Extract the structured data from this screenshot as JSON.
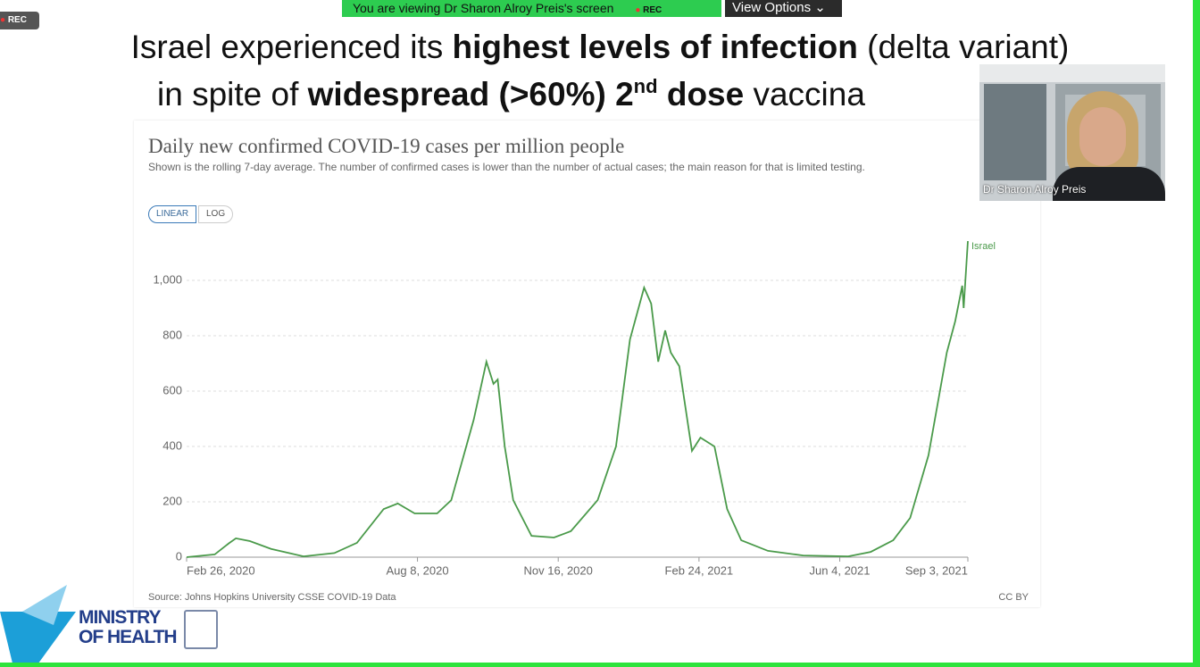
{
  "zoom": {
    "viewing": "You are viewing Dr Sharon Alroy Preis's screen",
    "rec": "REC",
    "view_options": "View Options",
    "rec_badge": "REC"
  },
  "slide": {
    "line1": [
      "Israel experienced its ",
      "highest levels of infection",
      " (delta variant)"
    ],
    "line2": [
      "in spite of ",
      "widespread (>60%) 2",
      "nd",
      " dose",
      " vaccina"
    ]
  },
  "video": {
    "name": "Dr Sharon Alroy Preis"
  },
  "logo": {
    "line1": "MINISTRY",
    "line2": "OF HEALTH"
  },
  "chart_data": {
    "type": "line",
    "title": "Daily new confirmed COVID-19 cases per million people",
    "subtitle": "Shown is the rolling 7-day average. The number of confirmed cases is lower than the number of actual cases; the main reason for that is limited testing.",
    "buttons": [
      "LINEAR",
      "LOG"
    ],
    "source": "Source: Johns Hopkins University CSSE COVID-19 Data",
    "license": "CC BY",
    "x": [
      "2020-02-26",
      "2020-03-17",
      "2020-03-27",
      "2020-04-01",
      "2020-04-11",
      "2020-04-26",
      "2020-05-19",
      "2020-06-10",
      "2020-06-26",
      "2020-07-15",
      "2020-07-25",
      "2020-08-06",
      "2020-08-22",
      "2020-09-01",
      "2020-09-17",
      "2020-09-26",
      "2020-10-01",
      "2020-10-04",
      "2020-10-09",
      "2020-10-15",
      "2020-10-28",
      "2020-11-13",
      "2020-11-25",
      "2020-12-14",
      "2020-12-27",
      "2021-01-06",
      "2021-01-16",
      "2021-01-21",
      "2021-01-26",
      "2021-01-31",
      "2021-02-04",
      "2021-02-10",
      "2021-02-19",
      "2021-02-25",
      "2021-03-07",
      "2021-03-16",
      "2021-03-26",
      "2021-04-14",
      "2021-05-09",
      "2021-06-10",
      "2021-06-26",
      "2021-07-12",
      "2021-07-24",
      "2021-08-06",
      "2021-08-19",
      "2021-08-25",
      "2021-08-30",
      "2021-08-31",
      "2021-09-03"
    ],
    "series": [
      {
        "name": "Israel",
        "color": "#4a9a4a",
        "values": [
          0,
          10,
          50,
          68,
          58,
          30,
          3,
          15,
          52,
          174,
          194,
          158,
          158,
          206,
          497,
          706,
          626,
          642,
          400,
          206,
          77,
          71,
          94,
          206,
          400,
          787,
          974,
          916,
          706,
          819,
          739,
          690,
          384,
          432,
          400,
          174,
          61,
          23,
          6,
          3,
          19,
          61,
          142,
          368,
          739,
          852,
          981,
          900,
          1142
        ]
      }
    ],
    "xlim": [
      "2020-02-26",
      "2021-09-03"
    ],
    "xticks": [
      {
        "value": "2020-02-26",
        "label": "Feb 26, 2020"
      },
      {
        "value": "2020-08-08",
        "label": "Aug 8, 2020"
      },
      {
        "value": "2020-11-16",
        "label": "Nov 16, 2020"
      },
      {
        "value": "2021-02-24",
        "label": "Feb 24, 2021"
      },
      {
        "value": "2021-06-04",
        "label": "Jun 4, 2021"
      },
      {
        "value": "2021-09-03",
        "label": "Sep 3, 2021"
      }
    ],
    "ylim": [
      0,
      1150
    ],
    "yticks": [
      0,
      200,
      400,
      600,
      800,
      {
        "value": 1000,
        "label": "1,000"
      }
    ],
    "grid": true
  }
}
